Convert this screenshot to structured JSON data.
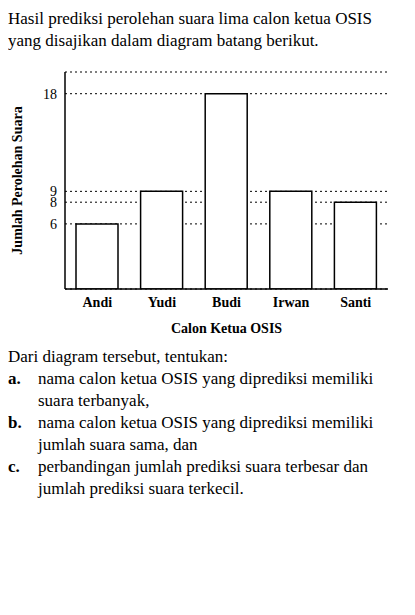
{
  "intro": "Hasil prediksi perolehan suara lima calon ketua OSIS yang disajikan dalam diagram batang berikut.",
  "chart_data": {
    "type": "bar",
    "x_label": "Calon Ketua OSIS",
    "y_label": "Jumlah Perolehan Suara",
    "categories": [
      "Andi",
      "Yudi",
      "Budi",
      "Irwan",
      "Santi"
    ],
    "values": [
      6,
      9,
      18,
      9,
      8
    ],
    "color": "#ffffff",
    "ylim": [
      0,
      20
    ],
    "yticks": [
      6,
      8,
      9,
      18
    ],
    "grid": true
  },
  "question": {
    "prompt": "Dari diagram tersebut, tentukan:",
    "items": [
      {
        "label": "a.",
        "text": "nama calon ketua OSIS yang diprediksi memiliki suara terbanyak,"
      },
      {
        "label": "b.",
        "text": "nama calon ketua OSIS yang diprediksi memiliki jumlah suara sama, dan"
      },
      {
        "label": "c.",
        "text": "perbandingan jumlah prediksi suara terbesar dan jumlah prediksi suara terkecil."
      }
    ]
  }
}
